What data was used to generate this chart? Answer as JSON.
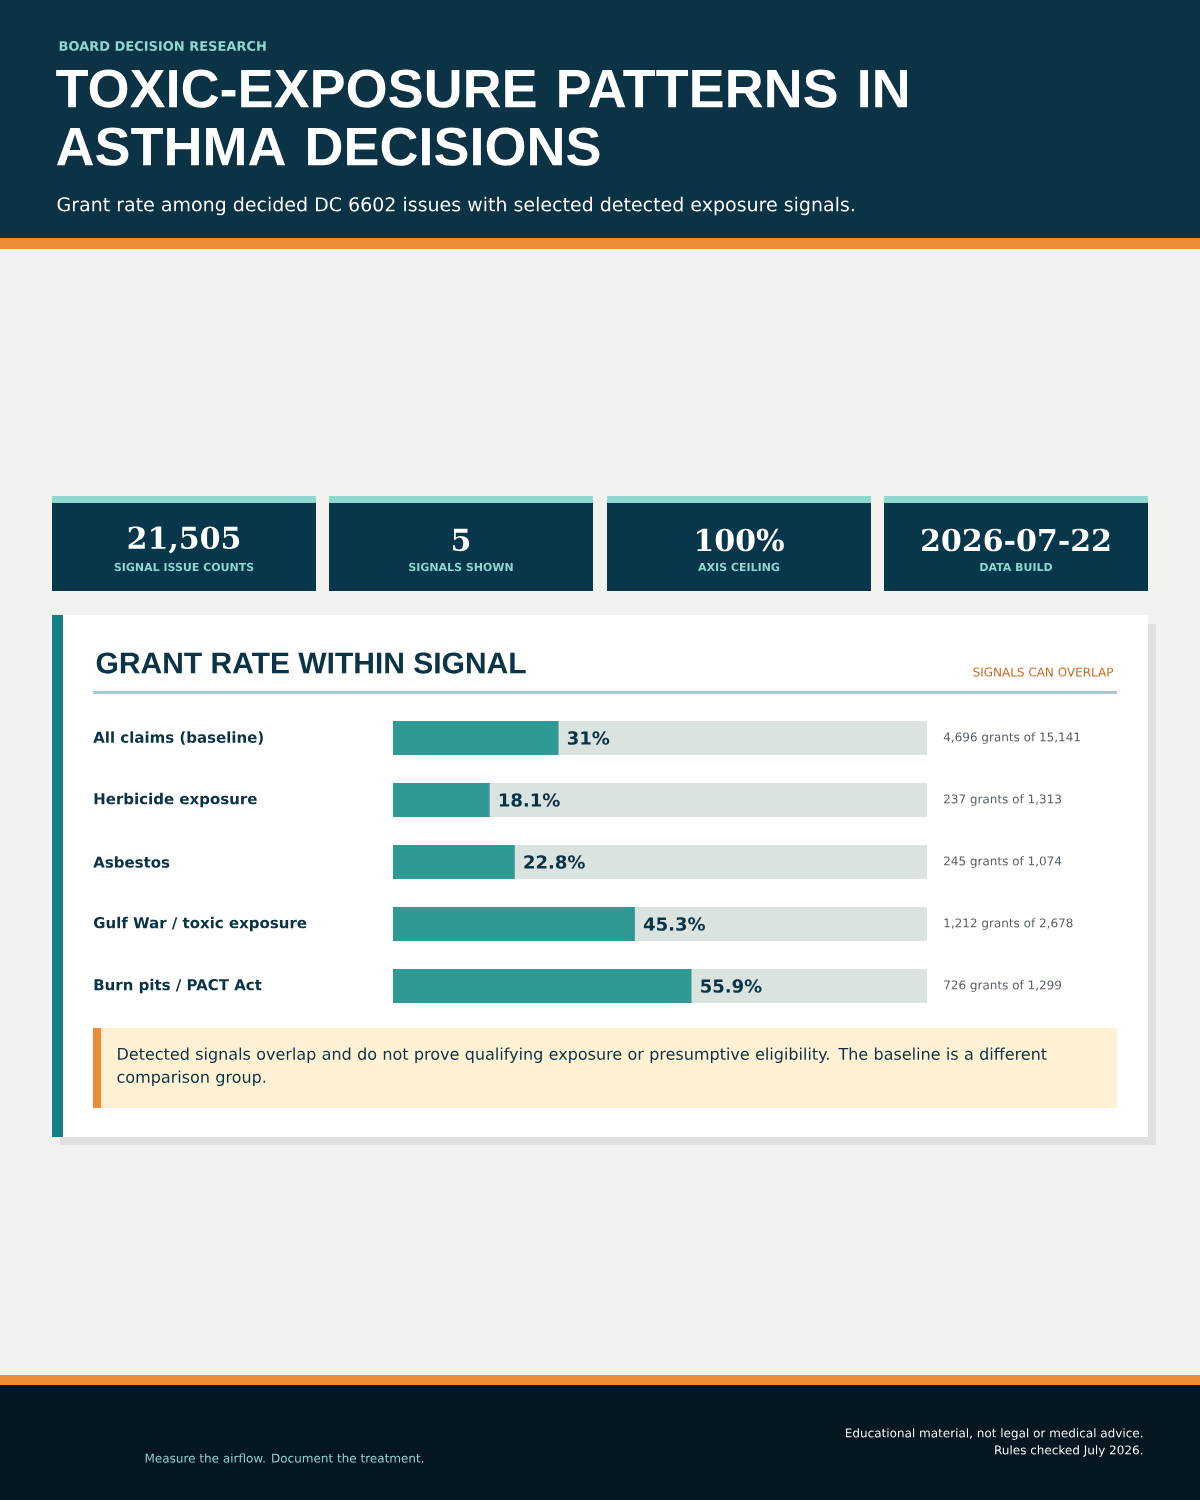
{
  "chart_data": {
    "type": "bar",
    "orientation": "horizontal",
    "title": "TOXIC-EXPOSURE PATTERNS IN ASTHMA DECISIONS",
    "subtitle": "Grant rate among decided DC 6602 issues with selected detected exposure signals.",
    "categories": [
      "All claims (baseline)",
      "Herbicide exposure",
      "Asbestos",
      "Gulf War / toxic exposure",
      "Burn pits / PACT Act"
    ],
    "values": [
      31,
      18.1,
      22.8,
      45.3,
      55.9
    ],
    "value_labels": [
      "31%",
      "18.1%",
      "22.8%",
      "45.3%",
      "55.9%"
    ],
    "color": "#2e9a93",
    "xlim": [
      0,
      100
    ],
    "tick_labels": "y",
    "annotations": [
      "BOARD DECISION RESEARCH",
      "21,505",
      "SIGNAL ISSUE COUNTS",
      "5",
      "SIGNALS SHOWN",
      "100%",
      "AXIS CEILING",
      "2026-07-22",
      "DATA BUILD",
      "GRANT RATE WITHIN SIGNAL",
      "SIGNALS CAN OVERLAP",
      "4,696 grants of 15,141",
      "237 grants of 1,313",
      "245 grants of 1,074",
      "1,212 grants of 2,678",
      "726 grants of 1,299",
      "Detected signals overlap and do not prove qualifying exposure or presumptive eligibility. The baseline is a different comparison group.",
      "Measure the airflow. Document the treatment.",
      "Educational material, not legal or medical advice.",
      "Rules checked July 2026."
    ]
  }
}
